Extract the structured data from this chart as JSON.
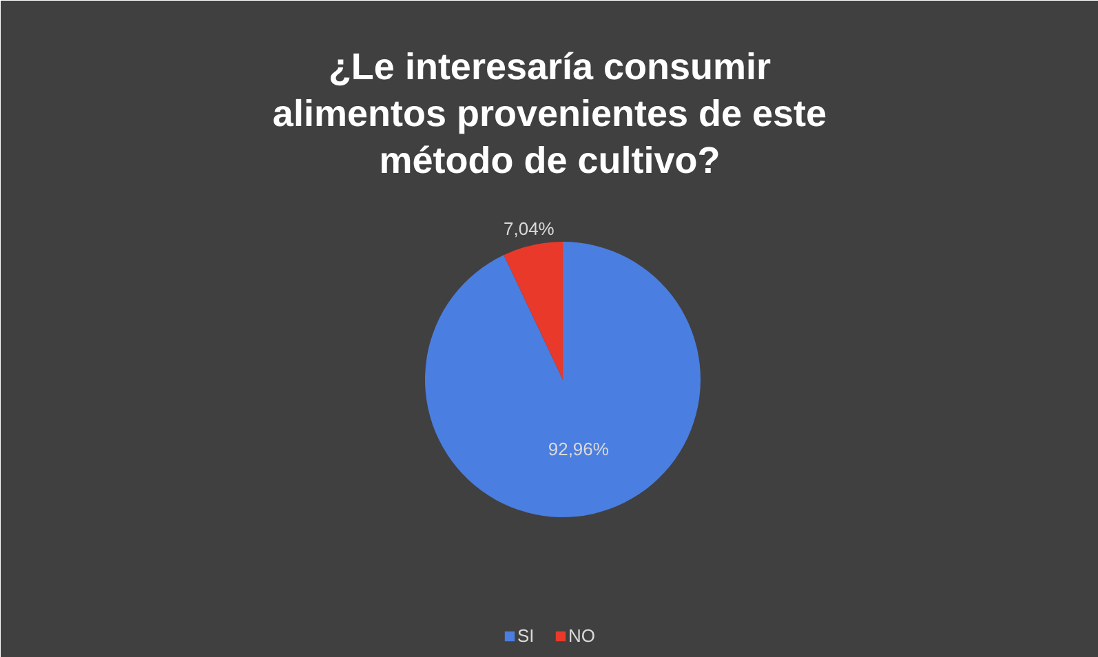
{
  "chart_data": {
    "type": "pie",
    "title": "¿Le interesaría consumir alimentos provenientes de este método de cultivo?",
    "categories": [
      "SI",
      "NO"
    ],
    "values": [
      92.96,
      7.04
    ],
    "colors": [
      "#4a7ee0",
      "#e8392b"
    ],
    "value_labels": [
      "92,96%",
      "7,04%"
    ],
    "legend": "bottom"
  }
}
